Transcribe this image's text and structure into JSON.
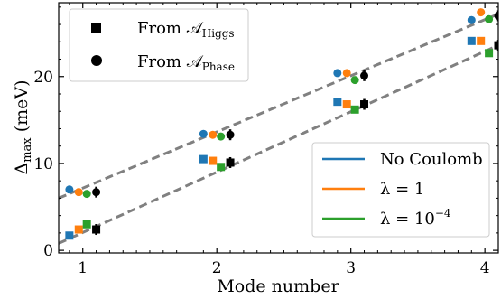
{
  "chart_data": {
    "type": "scatter",
    "xlabel": "Mode number",
    "ylabel": "Δmax (meV)",
    "ylabel_parts": {
      "main": "Δ",
      "sub": "max",
      "rest": " (meV)"
    },
    "xlim": [
      0.82,
      4.1
    ],
    "ylim": [
      -0.3,
      28.5
    ],
    "xticks": [
      1,
      2,
      3,
      4
    ],
    "yticks": [
      0,
      10,
      20
    ],
    "grid": false,
    "legend_markers": {
      "placement": "top-left",
      "entries": [
        {
          "marker": "square",
          "label": "From 𝒜",
          "sub": "Higgs"
        },
        {
          "marker": "circle",
          "label": "From 𝒜",
          "sub": "Phase"
        }
      ]
    },
    "legend_colors": {
      "placement": "bottom-right",
      "entries": [
        {
          "color": "#1f77b4",
          "label": "No Coulomb",
          "sup": ""
        },
        {
          "color": "#ff7f0e",
          "label": "λ = 1",
          "sup": ""
        },
        {
          "color": "#2ca02c",
          "label": "λ = 10",
          "sup": "−4"
        }
      ]
    },
    "fit_lines": [
      {
        "name": "phase-fit",
        "x": [
          0.82,
          4.1
        ],
        "y": [
          6.0,
          27.2
        ]
      },
      {
        "name": "higgs-fit",
        "x": [
          0.82,
          4.1
        ],
        "y": [
          0.8,
          23.6
        ]
      }
    ],
    "series": [
      {
        "name": "Higgs No Coulomb",
        "marker": "square",
        "color": "#1f77b4",
        "x": [
          0.9,
          1.9,
          2.9,
          3.9
        ],
        "y": [
          1.7,
          10.5,
          17.1,
          24.1
        ]
      },
      {
        "name": "Higgs λ=1",
        "marker": "square",
        "color": "#ff7f0e",
        "x": [
          0.97,
          1.97,
          2.97,
          3.97
        ],
        "y": [
          2.4,
          10.3,
          16.8,
          24.1
        ]
      },
      {
        "name": "Higgs λ=1e-4",
        "marker": "square",
        "color": "#2ca02c",
        "x": [
          1.03,
          2.03,
          3.03,
          4.03
        ],
        "y": [
          3.0,
          9.6,
          16.2,
          22.7
        ]
      },
      {
        "name": "Higgs exact",
        "marker": "square",
        "color": "#000000",
        "x": [
          1.1,
          2.1,
          3.1,
          4.1
        ],
        "y": [
          2.4,
          10.1,
          16.8,
          23.6
        ]
      },
      {
        "name": "Phase No Coulomb",
        "marker": "circle",
        "color": "#1f77b4",
        "x": [
          0.9,
          1.9,
          2.9,
          3.9
        ],
        "y": [
          7.0,
          13.4,
          20.4,
          26.5
        ]
      },
      {
        "name": "Phase λ=1",
        "marker": "circle",
        "color": "#ff7f0e",
        "x": [
          0.97,
          1.97,
          2.97,
          3.97
        ],
        "y": [
          6.7,
          13.3,
          20.4,
          27.4
        ]
      },
      {
        "name": "Phase λ=1e-4",
        "marker": "circle",
        "color": "#2ca02c",
        "x": [
          1.03,
          2.03,
          3.03,
          4.03
        ],
        "y": [
          6.5,
          13.1,
          19.6,
          26.6
        ]
      },
      {
        "name": "Phase exact",
        "marker": "circle",
        "color": "#000000",
        "x": [
          1.1,
          2.1,
          3.1,
          4.1
        ],
        "y": [
          6.7,
          13.3,
          20.1,
          27.0
        ]
      }
    ]
  }
}
